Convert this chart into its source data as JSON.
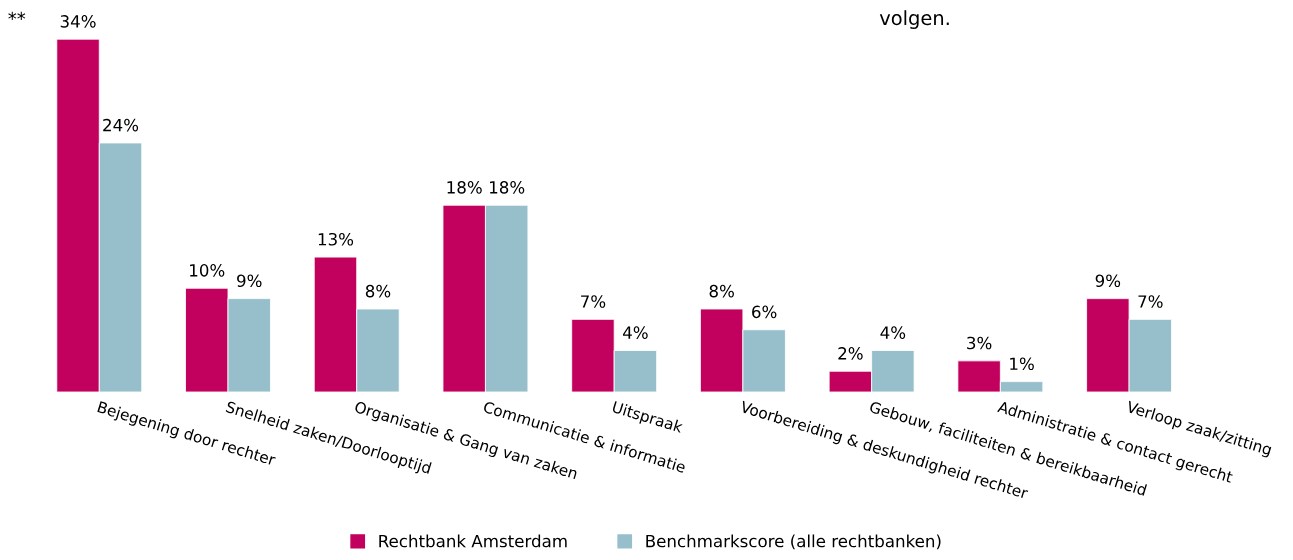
{
  "chart_data": {
    "type": "bar",
    "categories": [
      "Bejegening door rechter",
      "Snelheid zaken/Doorlooptijd",
      "Organisatie & Gang van zaken",
      "Communicatie & informatie",
      "Uitspraak",
      "Voorbereiding & deskundigheid rechter",
      "Gebouw, faciliteiten & bereikbaarheid",
      "Administratie & contact gerecht",
      "Verloop zaak/zitting"
    ],
    "series": [
      {
        "name": "Rechtbank Amsterdam",
        "color": "#c2005e",
        "values": [
          34,
          10,
          13,
          18,
          7,
          8,
          2,
          3,
          9
        ],
        "value_labels": [
          "34%",
          "10%",
          "13%",
          "18%",
          "7%",
          "8%",
          "2%",
          "3%",
          "9%"
        ]
      },
      {
        "name": "Benchmarkscore (alle rechtbanken)",
        "color": "#97bfcb",
        "values": [
          24,
          9,
          8,
          18,
          4,
          6,
          4,
          1,
          7
        ],
        "value_labels": [
          "24%",
          "9%",
          "8%",
          "18%",
          "4%",
          "6%",
          "4%",
          "1%",
          "7%"
        ]
      }
    ],
    "annotations": [
      "**",
      "volgen."
    ],
    "legend": "bottom",
    "grid": false
  }
}
